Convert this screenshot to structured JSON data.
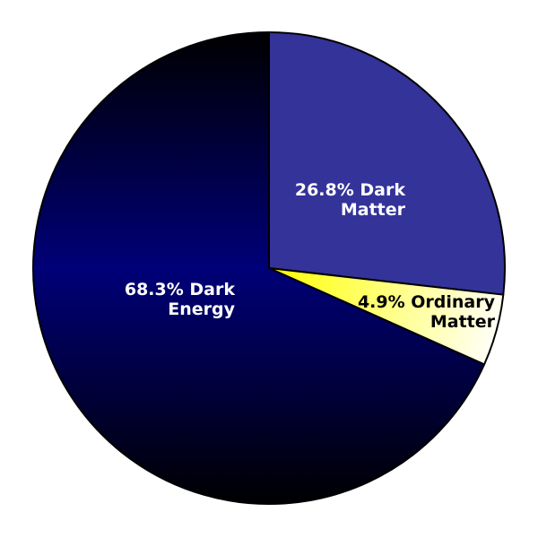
{
  "chart_data": {
    "type": "pie",
    "start": "top",
    "direction": "clockwise",
    "slices": [
      {
        "label_lines": [
          "26.8% Dark",
          "Matter"
        ],
        "value": 26.8,
        "fill": "#333399",
        "text_color": "#ffffff"
      },
      {
        "label_lines": [
          "4.9% Ordinary",
          "Matter"
        ],
        "value": 4.9,
        "fill": "#ffff33",
        "fill_outer": "#ffffff",
        "text_color": "#000000"
      },
      {
        "label_lines": [
          "68.3% Dark",
          "Energy"
        ],
        "value": 68.3,
        "fill": "#000080",
        "fill_outer": "#000000",
        "text_color": "#ffffff"
      }
    ],
    "outline_color": "#000000"
  }
}
